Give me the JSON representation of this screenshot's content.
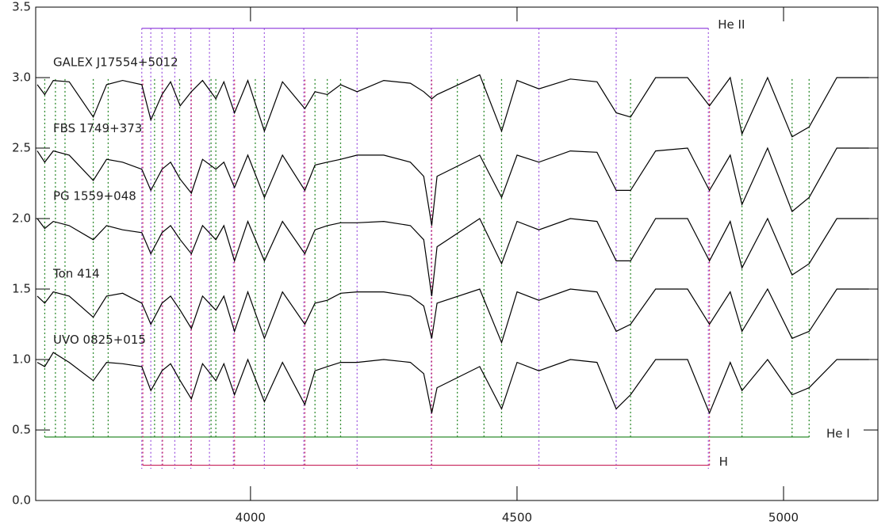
{
  "chart_data": {
    "type": "line",
    "xlim": [
      3597,
      5177
    ],
    "ylim": [
      0,
      3.5
    ],
    "xticks": [
      4000,
      4500,
      5000
    ],
    "yticks": [
      {
        "value": 0,
        "label": "0.0"
      },
      0.5,
      {
        "value": 1,
        "label": "1.0"
      },
      1.5,
      {
        "value": 2,
        "label": "2.0"
      },
      2.5,
      {
        "value": 3,
        "label": "3.0"
      },
      3.5
    ],
    "x": [
      3600,
      3614,
      3630,
      3660,
      3705,
      3730,
      3760,
      3796,
      3813,
      3834,
      3850,
      3868,
      3889,
      3910,
      3935,
      3950,
      3970,
      3995,
      4026,
      4060,
      4102,
      4121,
      4144,
      4169,
      4200,
      4250,
      4300,
      4325,
      4340,
      4350,
      4430,
      4471,
      4500,
      4541,
      4600,
      4650,
      4686,
      4713,
      4760,
      4820,
      4861,
      4900,
      4922,
      4970,
      5016,
      5048,
      5100,
      5160
    ],
    "series": [
      {
        "name": "GALEX J17554+5012",
        "color": "#000000",
        "values": [
          2.95,
          2.88,
          2.98,
          2.97,
          2.72,
          2.95,
          2.98,
          2.95,
          2.7,
          2.88,
          2.97,
          2.8,
          2.9,
          2.98,
          2.85,
          2.97,
          2.75,
          2.98,
          2.62,
          2.97,
          2.78,
          2.9,
          2.88,
          2.95,
          2.9,
          2.98,
          2.96,
          2.9,
          2.85,
          2.88,
          3.02,
          2.62,
          2.98,
          2.92,
          2.99,
          2.97,
          2.75,
          2.72,
          3.0,
          3.0,
          2.8,
          3.0,
          2.6,
          3.0,
          2.58,
          2.65,
          3.0,
          3.0
        ]
      },
      {
        "name": "FBS 1749+373",
        "color": "#000000",
        "values": [
          2.48,
          2.4,
          2.48,
          2.45,
          2.27,
          2.42,
          2.4,
          2.35,
          2.2,
          2.35,
          2.4,
          2.28,
          2.18,
          2.42,
          2.35,
          2.4,
          2.22,
          2.45,
          2.15,
          2.45,
          2.2,
          2.38,
          2.4,
          2.42,
          2.45,
          2.45,
          2.4,
          2.3,
          1.95,
          2.3,
          2.45,
          2.15,
          2.45,
          2.4,
          2.48,
          2.47,
          2.2,
          2.2,
          2.48,
          2.5,
          2.2,
          2.45,
          2.1,
          2.5,
          2.05,
          2.15,
          2.5,
          2.5
        ]
      },
      {
        "name": "PG 1559+048",
        "color": "#000000",
        "values": [
          2.0,
          1.93,
          1.98,
          1.95,
          1.85,
          1.95,
          1.92,
          1.9,
          1.75,
          1.9,
          1.95,
          1.85,
          1.75,
          1.95,
          1.85,
          1.95,
          1.7,
          1.98,
          1.7,
          1.98,
          1.75,
          1.92,
          1.95,
          1.97,
          1.97,
          1.98,
          1.95,
          1.85,
          1.45,
          1.8,
          2.0,
          1.68,
          1.98,
          1.92,
          2.0,
          1.98,
          1.7,
          1.7,
          2.0,
          2.0,
          1.7,
          1.98,
          1.65,
          2.0,
          1.6,
          1.68,
          2.0,
          2.0
        ]
      },
      {
        "name": "Ton 414",
        "color": "#000000",
        "values": [
          1.45,
          1.4,
          1.48,
          1.45,
          1.3,
          1.45,
          1.47,
          1.4,
          1.25,
          1.4,
          1.45,
          1.35,
          1.22,
          1.45,
          1.35,
          1.45,
          1.2,
          1.48,
          1.15,
          1.48,
          1.25,
          1.4,
          1.42,
          1.47,
          1.48,
          1.48,
          1.45,
          1.38,
          1.15,
          1.4,
          1.5,
          1.12,
          1.48,
          1.42,
          1.5,
          1.48,
          1.2,
          1.25,
          1.5,
          1.5,
          1.25,
          1.48,
          1.2,
          1.5,
          1.15,
          1.2,
          1.5,
          1.5
        ]
      },
      {
        "name": "UVO 0825+015",
        "color": "#000000",
        "values": [
          0.98,
          0.95,
          1.05,
          0.98,
          0.85,
          0.98,
          0.97,
          0.95,
          0.78,
          0.92,
          0.97,
          0.85,
          0.72,
          0.97,
          0.85,
          0.97,
          0.75,
          1.0,
          0.7,
          0.98,
          0.68,
          0.92,
          0.95,
          0.98,
          0.98,
          1.0,
          0.98,
          0.9,
          0.62,
          0.8,
          0.95,
          0.65,
          0.98,
          0.92,
          1.0,
          0.98,
          0.65,
          0.75,
          1.0,
          1.0,
          0.62,
          0.98,
          0.78,
          1.0,
          0.75,
          0.8,
          1.0,
          1.0
        ]
      }
    ],
    "line_sets": [
      {
        "name": "He II",
        "color": "#a05ae0",
        "level": 3.35,
        "wavelengths": [
          3796,
          3813,
          3834,
          3858,
          3888,
          3923,
          3968,
          4026,
          4100,
          4200,
          4339,
          4541,
          4686,
          4859
        ]
      },
      {
        "name": "He I",
        "color": "#2e8b2e",
        "level": 0.45,
        "wavelengths": [
          3614,
          3634,
          3652,
          3705,
          3733,
          3820,
          3867,
          3926,
          3935,
          4009,
          4026,
          4121,
          4144,
          4169,
          4388,
          4438,
          4471,
          4713,
          4922,
          5016,
          5048
        ]
      },
      {
        "name": "H",
        "color": "#cc3366",
        "level": 0.25,
        "wavelengths": [
          3798,
          3835,
          3889,
          3970,
          4102,
          4340,
          4861
        ]
      }
    ]
  }
}
